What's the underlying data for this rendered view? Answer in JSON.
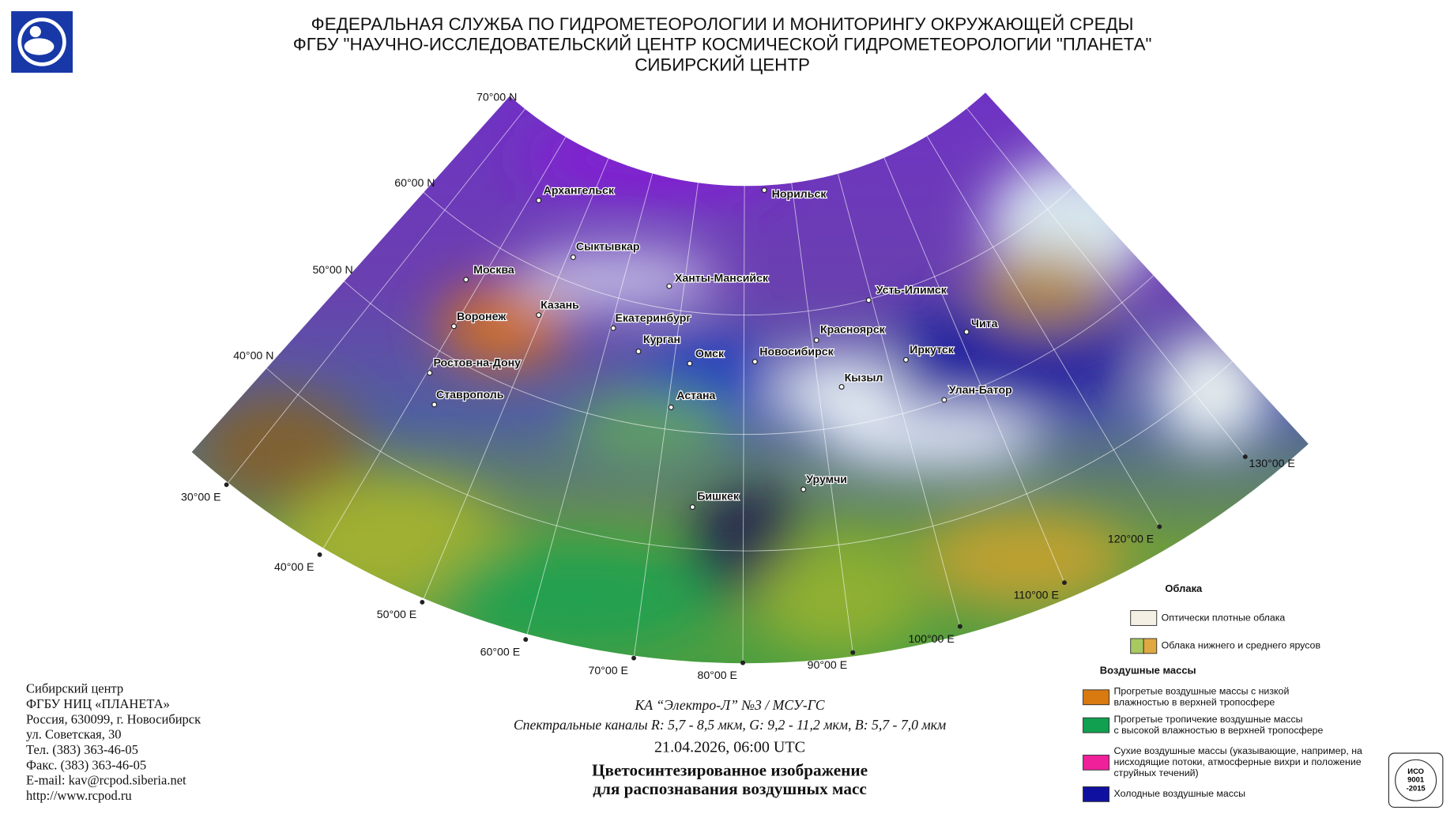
{
  "header": {
    "lines": [
      "ФЕДЕРАЛЬНАЯ СЛУЖБА ПО ГИДРОМЕТЕОРОЛОГИИ И МОНИТОРИНГУ ОКРУЖАЮЩЕЙ СРЕДЫ",
      "ФГБУ \"НАУЧНО-ИССЛЕДОВАТЕЛЬСКИЙ ЦЕНТР КОСМИЧЕСКОЙ ГИДРОМЕТЕОРОЛОГИИ \"ПЛАНЕТА\"",
      "СИБИРСКИЙ ЦЕНТР"
    ]
  },
  "map": {
    "lat_labels": [
      "70°00 N",
      "60°00 N",
      "50°00 N",
      "40°00 N"
    ],
    "lon_labels": [
      "30°00 E",
      "40°00 E",
      "50°00 E",
      "60°00 E",
      "70°00 E",
      "80°00 E",
      "90°00 E",
      "100°00 E",
      "110°00 E",
      "120°00 E",
      "130°00 E"
    ],
    "cities": [
      "Архангельск",
      "Норильск",
      "Сыктывкар",
      "Москва",
      "Ханты-Мансийск",
      "Усть-Илимск",
      "Воронеж",
      "Казань",
      "Екатеринбург",
      "Красноярск",
      "Чита",
      "Курган",
      "Омск",
      "Новосибирск",
      "Иркутск",
      "Ростов-на-Дону",
      "Кызыл",
      "Улан-Батор",
      "Ставрополь",
      "Астана",
      "Урумчи",
      "Бишкек"
    ]
  },
  "caption": {
    "satellite": "КА “Электро-Л” №3 / МСУ-ГС",
    "channels": "Спектральные каналы R: 5,7 - 8,5 мкм, G: 9,2 - 11,2 мкм, B: 5,7 - 7,0 мкм",
    "datetime": "21.04.2026, 06:00 UTC",
    "title": [
      "Цветосинтезированное изображение",
      "для распознавания воздушных масс"
    ]
  },
  "contact": {
    "lines": [
      "Сибирский центр",
      "ФГБУ НИЦ «ПЛАНЕТА»",
      "Россия, 630099, г. Новосибирск",
      "ул. Советская, 30",
      "Тел. (383) 363-46-05",
      "Факс. (383) 363-46-05",
      "E-mail: kav@rcpod.siberia.net",
      "http://www.rcpod.ru"
    ]
  },
  "legend": {
    "clouds_title": "Облака",
    "clouds": [
      {
        "colors": [
          "#f4f1e4"
        ],
        "lines": [
          "Оптически плотные облака"
        ]
      },
      {
        "colors": [
          "#a8c860",
          "#e0a840"
        ],
        "lines": [
          "Облака нижнего и среднего ярусов"
        ]
      }
    ],
    "air_title": "Воздушные массы",
    "air": [
      {
        "colors": [
          "#d87a10"
        ],
        "lines": [
          "Прогретые воздушные массы с низкой",
          "влажностью в верхней тропосфере"
        ]
      },
      {
        "colors": [
          "#10a050"
        ],
        "lines": [
          "Прогретые тропичекие воздушные массы",
          "с высокой влажностью в верхней тропосфере"
        ]
      },
      {
        "colors": [
          "#f0209a"
        ],
        "lines": [
          "Сухие воздушные массы (указывающие, например, на",
          "нисходящие потоки, атмосферные вихри и положение",
          "струйных течений)"
        ]
      },
      {
        "colors": [
          "#1010a0"
        ],
        "lines": [
          "Холодные воздушные массы"
        ]
      }
    ]
  },
  "badge": {
    "lines": [
      "ИСО",
      "9001",
      "-2015"
    ]
  }
}
